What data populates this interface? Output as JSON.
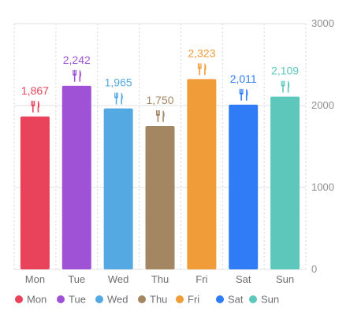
{
  "chart_data": {
    "type": "bar",
    "categories": [
      "Mon",
      "Tue",
      "Wed",
      "Thu",
      "Fri",
      "Sat",
      "Sun"
    ],
    "values": [
      1867,
      2242,
      1965,
      1750,
      2323,
      2011,
      2109
    ],
    "value_labels": [
      "1,867",
      "2,242",
      "1,965",
      "1,750",
      "2,323",
      "2,011",
      "2,109"
    ],
    "colors": [
      "#E8435A",
      "#A052D6",
      "#55A9E2",
      "#A38762",
      "#F09C38",
      "#2F7CF6",
      "#5DC7BC"
    ],
    "ylim": [
      0,
      3000
    ],
    "yticks": [
      0,
      1000,
      2000,
      3000
    ],
    "ytick_labels": [
      "0",
      "1000",
      "2000",
      "3000"
    ],
    "y_axis_side": "right",
    "grid": true,
    "legend": {
      "position": "bottom",
      "entries": [
        "Mon",
        "Tue",
        "Wed",
        "Thu",
        "Fri",
        "Sat",
        "Sun"
      ]
    },
    "annotation_icon": "fork-knife-icon"
  }
}
